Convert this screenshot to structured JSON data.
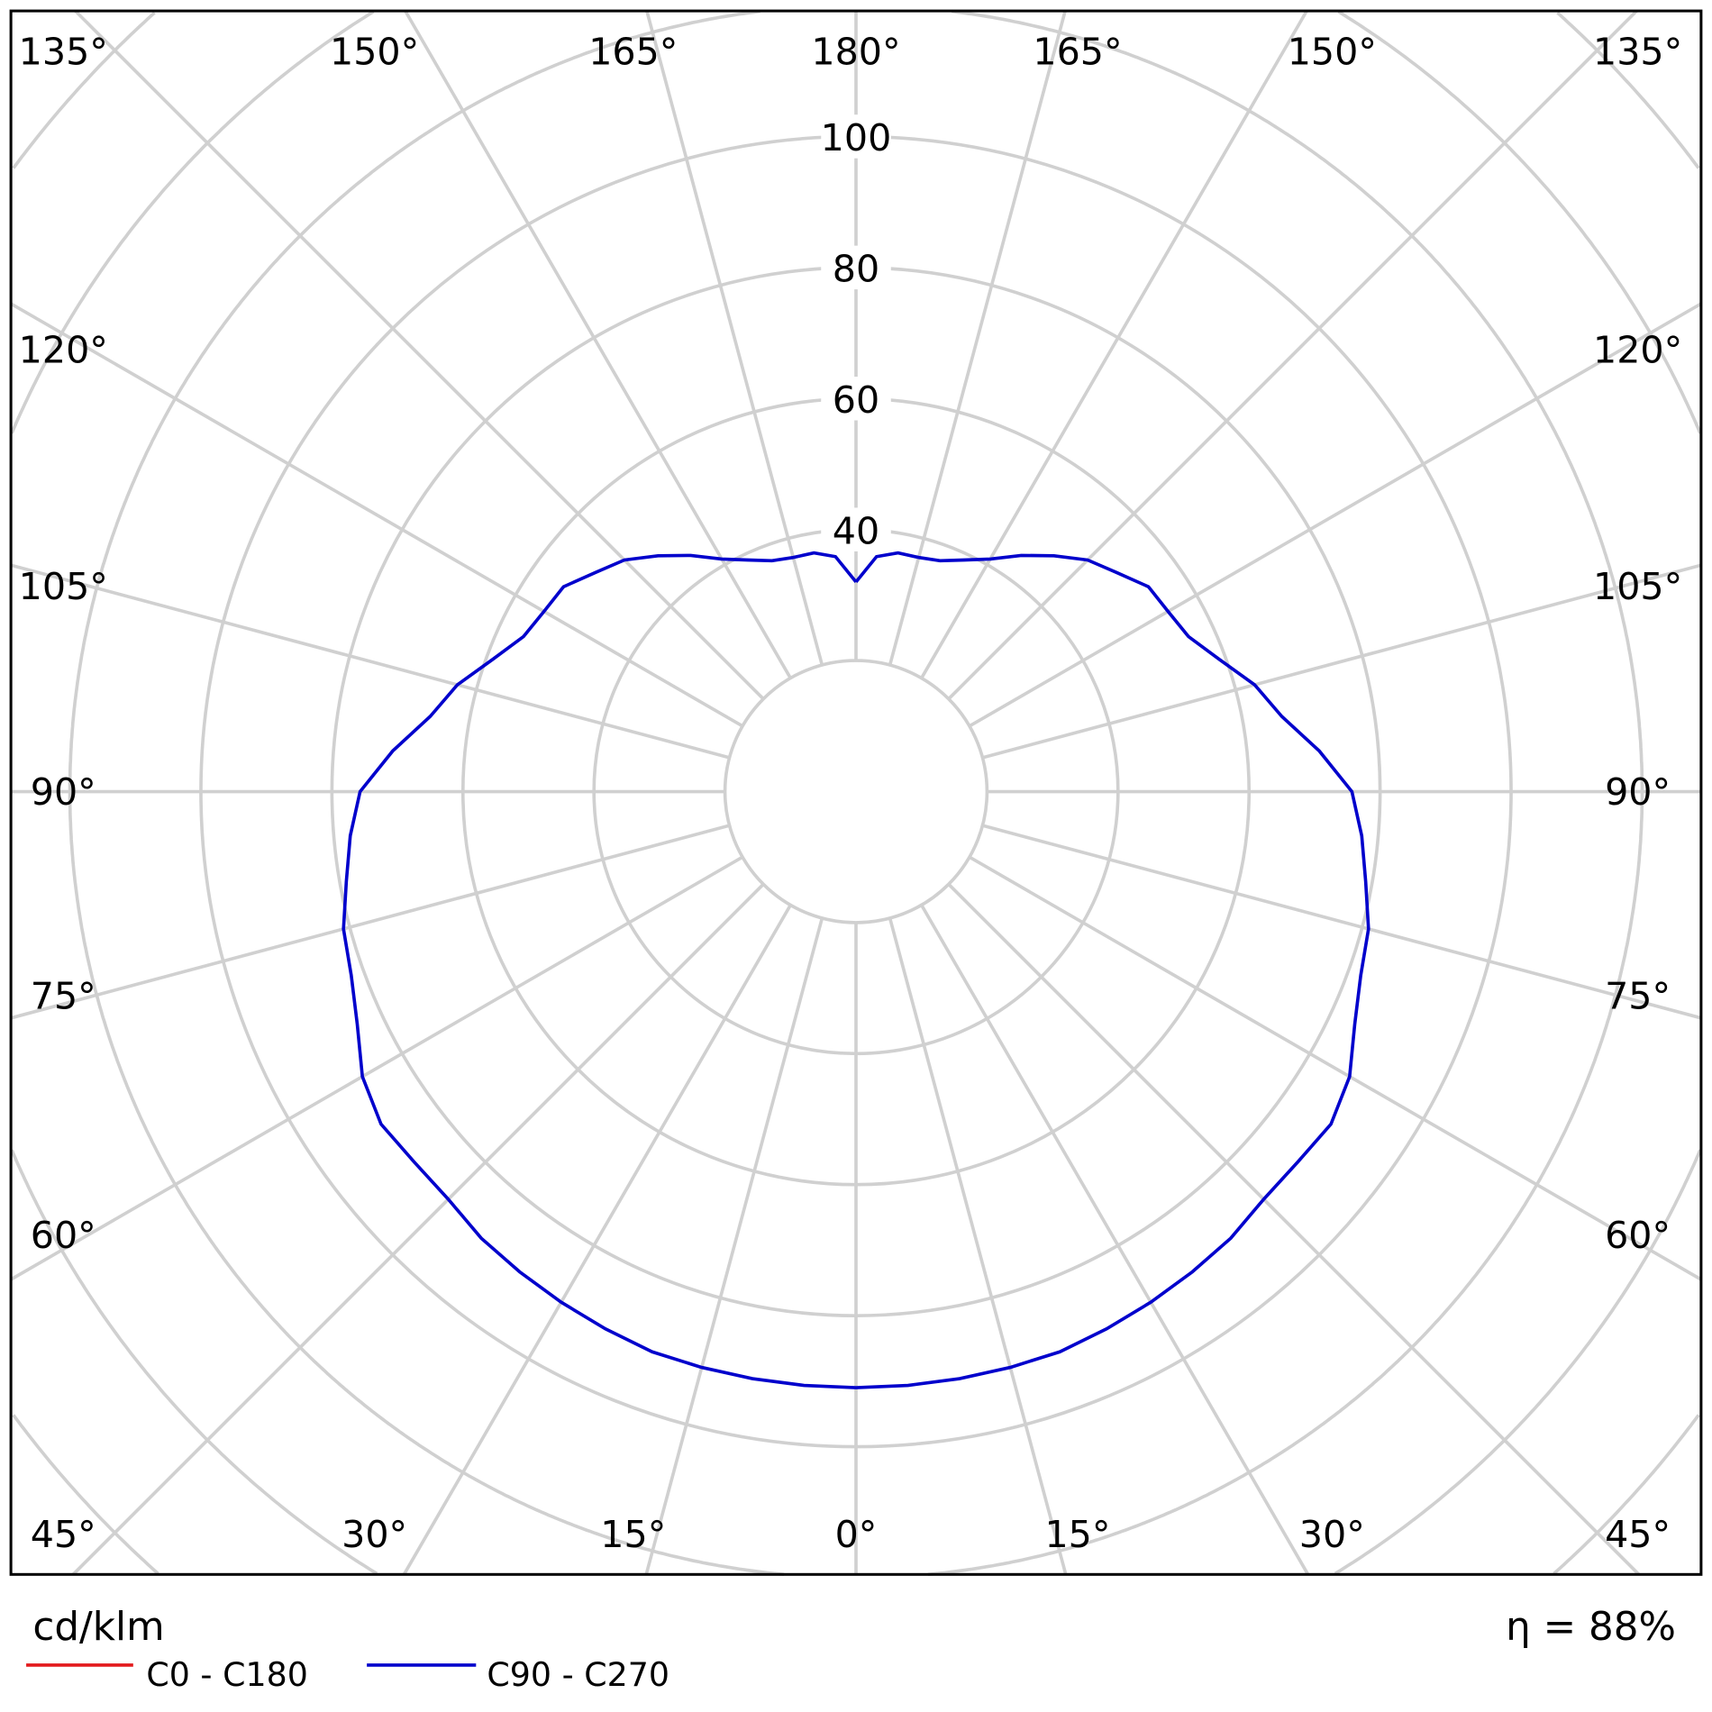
{
  "chart_data": {
    "type": "polar-line",
    "unit_label": "cd/klm",
    "efficiency_label": "η = 88%",
    "radial_ticks": [
      40,
      60,
      80,
      100
    ],
    "radial_range": [
      0,
      120
    ],
    "grid": true,
    "angle_labels": {
      "top": [
        "135°",
        "150°",
        "165°",
        "180°",
        "165°",
        "150°",
        "135°"
      ],
      "left": [
        "120°",
        "105°",
        "90°",
        "75°",
        "60°"
      ],
      "right": [
        "120°",
        "105°",
        "90°",
        "75°",
        "60°"
      ],
      "bottom": [
        "45°",
        "30°",
        "15°",
        "0°",
        "15°",
        "30°",
        "45°"
      ]
    },
    "angles_deg": [
      0,
      5,
      10,
      15,
      20,
      25,
      30,
      35,
      40,
      45,
      50,
      55,
      60,
      65,
      70,
      75,
      80,
      85,
      90,
      95,
      100,
      105,
      110,
      115,
      120,
      125,
      130,
      135,
      140,
      145,
      150,
      155,
      160,
      165,
      170,
      175,
      180
    ],
    "series": [
      {
        "name": "C0 - C180",
        "color": "#e31a1c",
        "values": []
      },
      {
        "name": "C90 - C270",
        "color": "#0000cc",
        "values": [
          91,
          91,
          91,
          91,
          91,
          90.5,
          90,
          89.5,
          89,
          88,
          88,
          88.5,
          87,
          84,
          82,
          81,
          79,
          77.5,
          75.7,
          71,
          66,
          63,
          59,
          56,
          55,
          54.5,
          52,
          50,
          47,
          44,
          41,
          39,
          37.5,
          37,
          37,
          36,
          32
        ]
      }
    ],
    "legend_position": "bottom-left"
  }
}
